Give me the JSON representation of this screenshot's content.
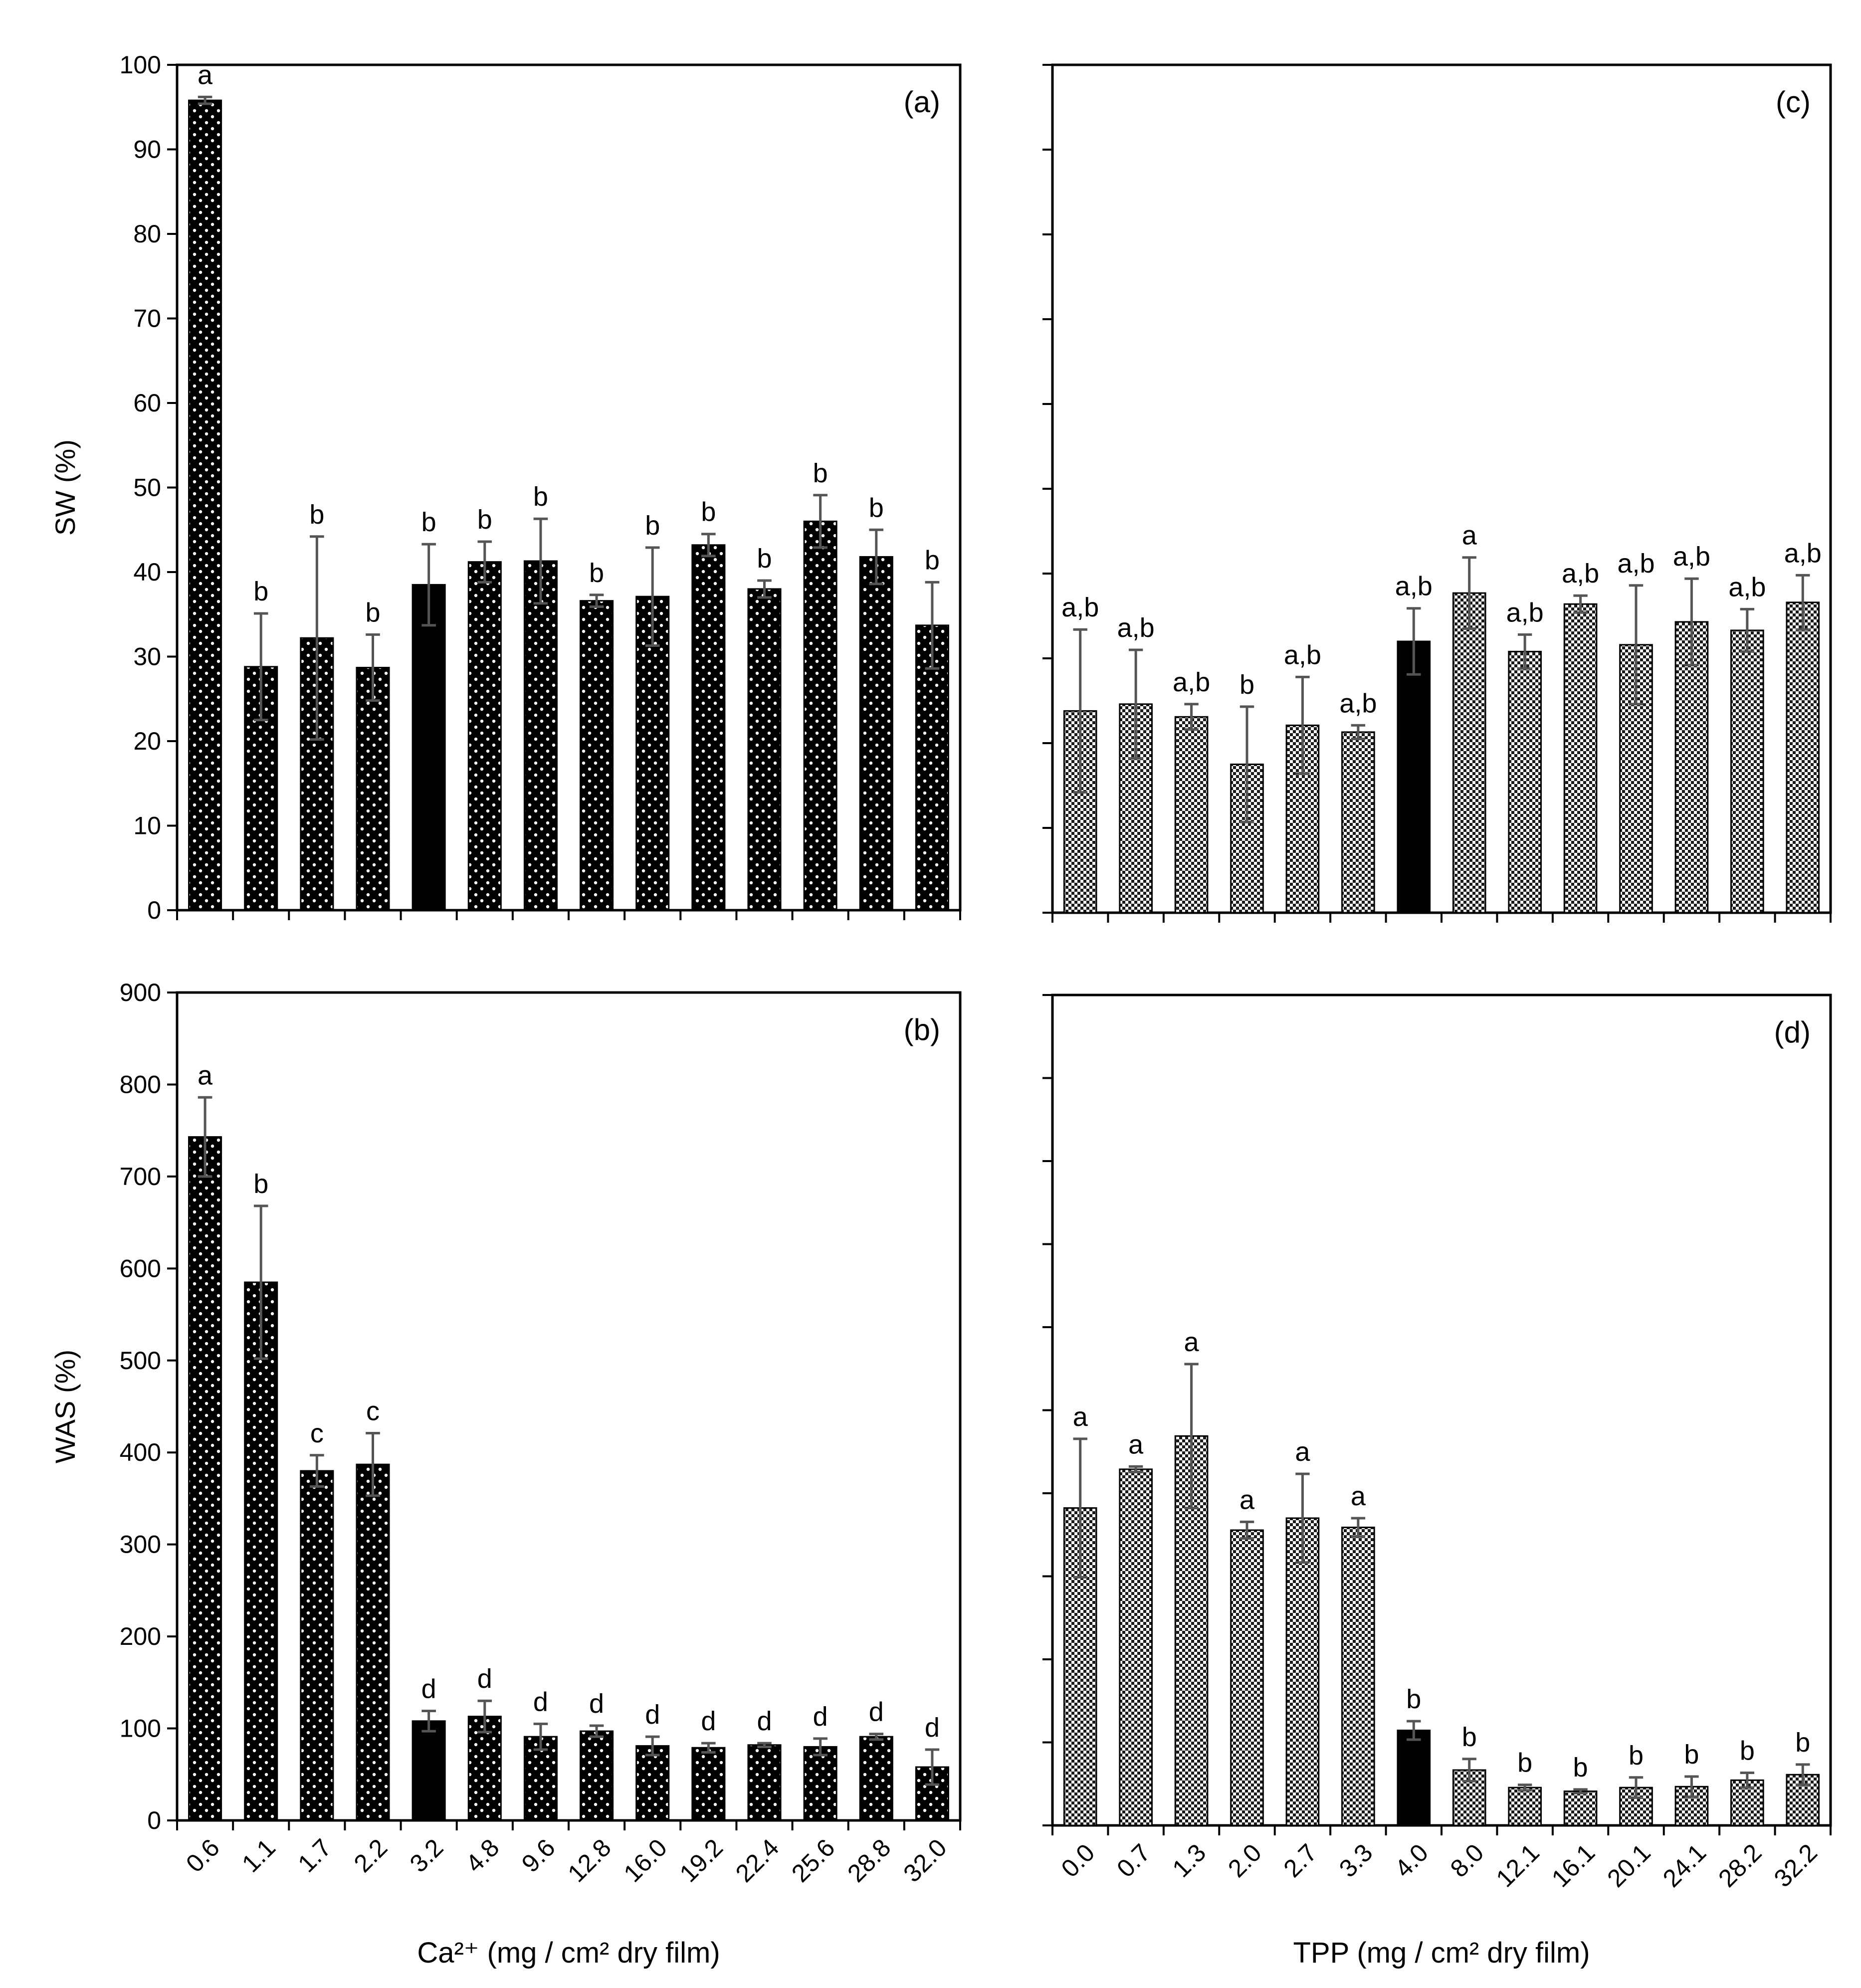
{
  "chart_data": [
    {
      "panel": "(a)",
      "type": "bar",
      "ylabel": "SW (%)",
      "ylim": [
        0,
        100
      ],
      "yticks": [
        "0",
        "10",
        "20",
        "30",
        "40",
        "50",
        "60",
        "70",
        "80",
        "90",
        "100"
      ],
      "categories": [
        "0.6",
        "1.1",
        "1.7",
        "2.2",
        "3.2",
        "4.8",
        "9.6",
        "12.8",
        "16.0",
        "19.2",
        "22.4",
        "25.6",
        "28.8",
        "32.0"
      ],
      "values": [
        95.8,
        28.8,
        32.2,
        28.7,
        38.5,
        41.2,
        41.3,
        36.6,
        37.1,
        43.2,
        38.0,
        46.0,
        41.8,
        33.7
      ],
      "errors": [
        0.4,
        6.3,
        12.0,
        3.9,
        4.8,
        2.4,
        5.0,
        0.7,
        5.8,
        1.3,
        1.0,
        3.1,
        3.2,
        5.1
      ],
      "letters": [
        "a",
        "b",
        "b",
        "b",
        "b",
        "b",
        "b",
        "b",
        "b",
        "b",
        "b",
        "b",
        "b",
        "b"
      ],
      "highlight_index": 4,
      "pattern": "dots",
      "show_tick_labels": false
    },
    {
      "panel": "(b)",
      "type": "bar",
      "ylabel": "WAS (%)",
      "xlabel": "Ca²⁺ (mg / cm² dry film)",
      "ylim": [
        0,
        900
      ],
      "yticks": [
        "0",
        "100",
        "200",
        "300",
        "400",
        "500",
        "600",
        "700",
        "800",
        "900"
      ],
      "categories": [
        "0.6",
        "1.1",
        "1.7",
        "2.2",
        "3.2",
        "4.8",
        "9.6",
        "12.8",
        "16.0",
        "19.2",
        "22.4",
        "25.6",
        "28.8",
        "32.0"
      ],
      "values": [
        743,
        585,
        380,
        387,
        108,
        113,
        91,
        97,
        81,
        79,
        82,
        80,
        91,
        58
      ],
      "errors": [
        43,
        83,
        17,
        34,
        11,
        17,
        14,
        6,
        10,
        5,
        2,
        9,
        3,
        19
      ],
      "letters": [
        "a",
        "b",
        "c",
        "c",
        "d",
        "d",
        "d",
        "d",
        "d",
        "d",
        "d",
        "d",
        "d",
        "d"
      ],
      "highlight_index": 4,
      "pattern": "dots",
      "show_tick_labels": true
    },
    {
      "panel": "(c)",
      "type": "bar",
      "ylim": [
        0,
        100
      ],
      "categories": [
        "0.0",
        "0.7",
        "1.3",
        "2.0",
        "2.7",
        "3.3",
        "4.0",
        "8.0",
        "12.1",
        "16.1",
        "20.1",
        "24.1",
        "28.2",
        "32.2"
      ],
      "values": [
        23.8,
        24.6,
        23.1,
        17.5,
        22.1,
        21.3,
        32.0,
        37.7,
        30.8,
        36.4,
        31.6,
        34.3,
        33.3,
        36.6
      ],
      "errors": [
        9.6,
        6.4,
        1.5,
        6.8,
        5.7,
        0.8,
        3.9,
        4.2,
        2.0,
        1.0,
        7.0,
        5.1,
        2.5,
        3.2
      ],
      "letters": [
        "a,b",
        "a,b",
        "a,b",
        "b",
        "a,b",
        "a,b",
        "a,b",
        "a",
        "a,b",
        "a,b",
        "a,b",
        "a,b",
        "a,b",
        "a,b"
      ],
      "highlight_index": 6,
      "pattern": "checker",
      "show_tick_labels": false
    },
    {
      "panel": "(d)",
      "type": "bar",
      "xlabel": "TPP (mg / cm² dry film)",
      "ylim": [
        0,
        900
      ],
      "categories": [
        "0.0",
        "0.7",
        "1.3",
        "2.0",
        "2.7",
        "3.3",
        "4.0",
        "8.0",
        "12.1",
        "16.1",
        "20.1",
        "24.1",
        "28.2",
        "32.2"
      ],
      "values": [
        344,
        386,
        422,
        320,
        333,
        323,
        103,
        60,
        41,
        37,
        41,
        42,
        49,
        55
      ],
      "errors": [
        75,
        3,
        78,
        9,
        48,
        10,
        10,
        12,
        3,
        2,
        11,
        11,
        8,
        11
      ],
      "letters": [
        "a",
        "a",
        "a",
        "a",
        "a",
        "a",
        "b",
        "b",
        "b",
        "b",
        "b",
        "b",
        "b",
        "b"
      ],
      "highlight_index": 6,
      "pattern": "checker",
      "show_tick_labels": true
    }
  ]
}
